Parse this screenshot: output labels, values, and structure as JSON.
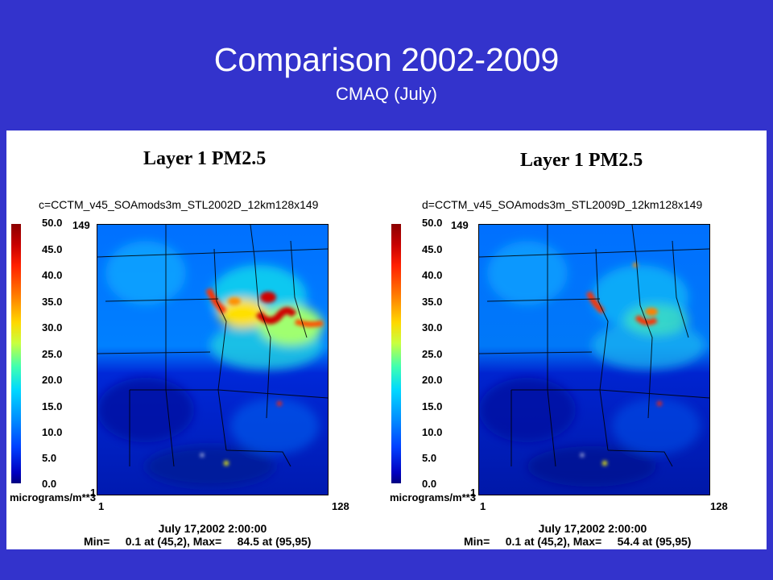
{
  "slide": {
    "title": "Comparison 2002-2009",
    "subtitle": "CMAQ (July)"
  },
  "panels": [
    {
      "layer_title": "Layer 1  PM2.5",
      "run_label": "c=CCTM_v45_SOAmods3m_STL2002D_12km128x149",
      "colorbar_ticks": [
        "50.0",
        "45.0",
        "40.0",
        "35.0",
        "30.0",
        "25.0",
        "20.0",
        "15.0",
        "10.0",
        "5.0",
        "0.0"
      ],
      "y_top": "149",
      "y_bottom": "1",
      "x_left": "1",
      "x_right": "128",
      "units": "micrograms/m**3",
      "date": "July 17,2002 2:00:00",
      "minmax": "Min=     0.1 at (45,2), Max=     84.5 at (95,95)"
    },
    {
      "layer_title": "Layer 1  PM2.5",
      "run_label": "d=CCTM_v45_SOAmods3m_STL2009D_12km128x149",
      "colorbar_ticks": [
        "50.0",
        "45.0",
        "40.0",
        "35.0",
        "30.0",
        "25.0",
        "20.0",
        "15.0",
        "10.0",
        "5.0",
        "0.0"
      ],
      "y_top": "149",
      "y_bottom": "1",
      "x_left": "1",
      "x_right": "128",
      "units": "micrograms/m**3",
      "date": "July 17,2002 2:00:00",
      "minmax": "Min=     0.1 at (45,2), Max=     54.4 at (95,95)"
    }
  ],
  "colors": {
    "background": "#3333cc"
  }
}
